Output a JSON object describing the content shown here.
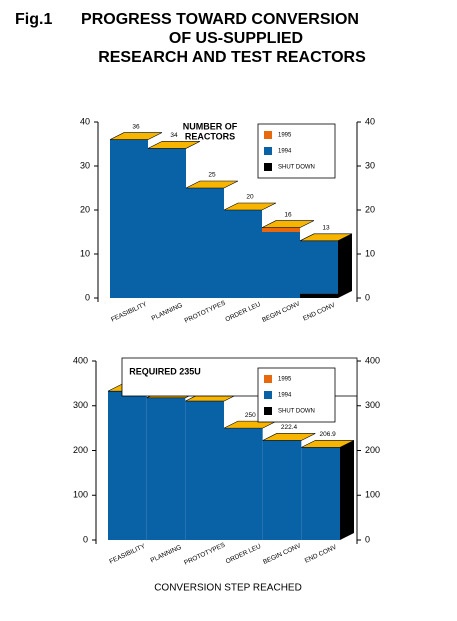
{
  "figure_label": "Fig.1",
  "title": [
    "PROGRESS TOWARD CONVERSION",
    "OF US-SUPPLIED",
    "RESEARCH AND TEST REACTORS"
  ],
  "x_label": "CONVERSION STEP REACHED",
  "chart_data": [
    {
      "type": "step",
      "title": [
        "NUMBER OF",
        "REACTORS"
      ],
      "categories": [
        "FEASIBILITY",
        "PLANNING",
        "PROTOTYPES",
        "ORDER LEU",
        "BEGIN CONV",
        "END CONV"
      ],
      "series": [
        {
          "name": "1995",
          "color": "#e8680e",
          "values": [
            0,
            0,
            0,
            0,
            1,
            0
          ]
        },
        {
          "name": "1994",
          "color": "#0a62a6",
          "values": [
            36,
            34,
            25,
            20,
            15,
            12
          ]
        },
        {
          "name": "SHUT DOWN",
          "color": "#000000",
          "values": [
            0,
            0,
            0,
            0,
            0,
            1
          ]
        }
      ],
      "totals": [
        36,
        34,
        25,
        20,
        16,
        13
      ],
      "ylim": [
        0,
        40
      ],
      "yticks": [
        0,
        10,
        20,
        30,
        40
      ],
      "y2lim": [
        0,
        40
      ],
      "y2ticks": [
        0,
        10,
        20,
        30,
        40
      ]
    },
    {
      "type": "step",
      "title": "REQUIRED 235U",
      "categories": [
        "FEASIBILITY",
        "PLANNING",
        "PROTOTYPES",
        "ORDER LEU",
        "BEGIN CONV",
        "END CONV"
      ],
      "series": [
        {
          "name": "1995",
          "color": "#e8680e",
          "values": [
            0,
            0,
            0,
            0,
            0,
            0
          ]
        },
        {
          "name": "1994",
          "color": "#0a62a6",
          "values": [
            332.6,
            317.7,
            310.4,
            250,
            222.4,
            206.9
          ]
        },
        {
          "name": "SHUT DOWN",
          "color": "#000000",
          "values": [
            0,
            0,
            0,
            0,
            0,
            0
          ]
        }
      ],
      "totals": [
        332.6,
        317.7,
        310.4,
        250,
        222.4,
        206.9
      ],
      "ylim": [
        0,
        400
      ],
      "yticks": [
        0,
        100,
        200,
        300,
        400
      ],
      "y2lim": [
        0,
        400
      ],
      "y2ticks": [
        0,
        100,
        200,
        300,
        400
      ]
    }
  ]
}
